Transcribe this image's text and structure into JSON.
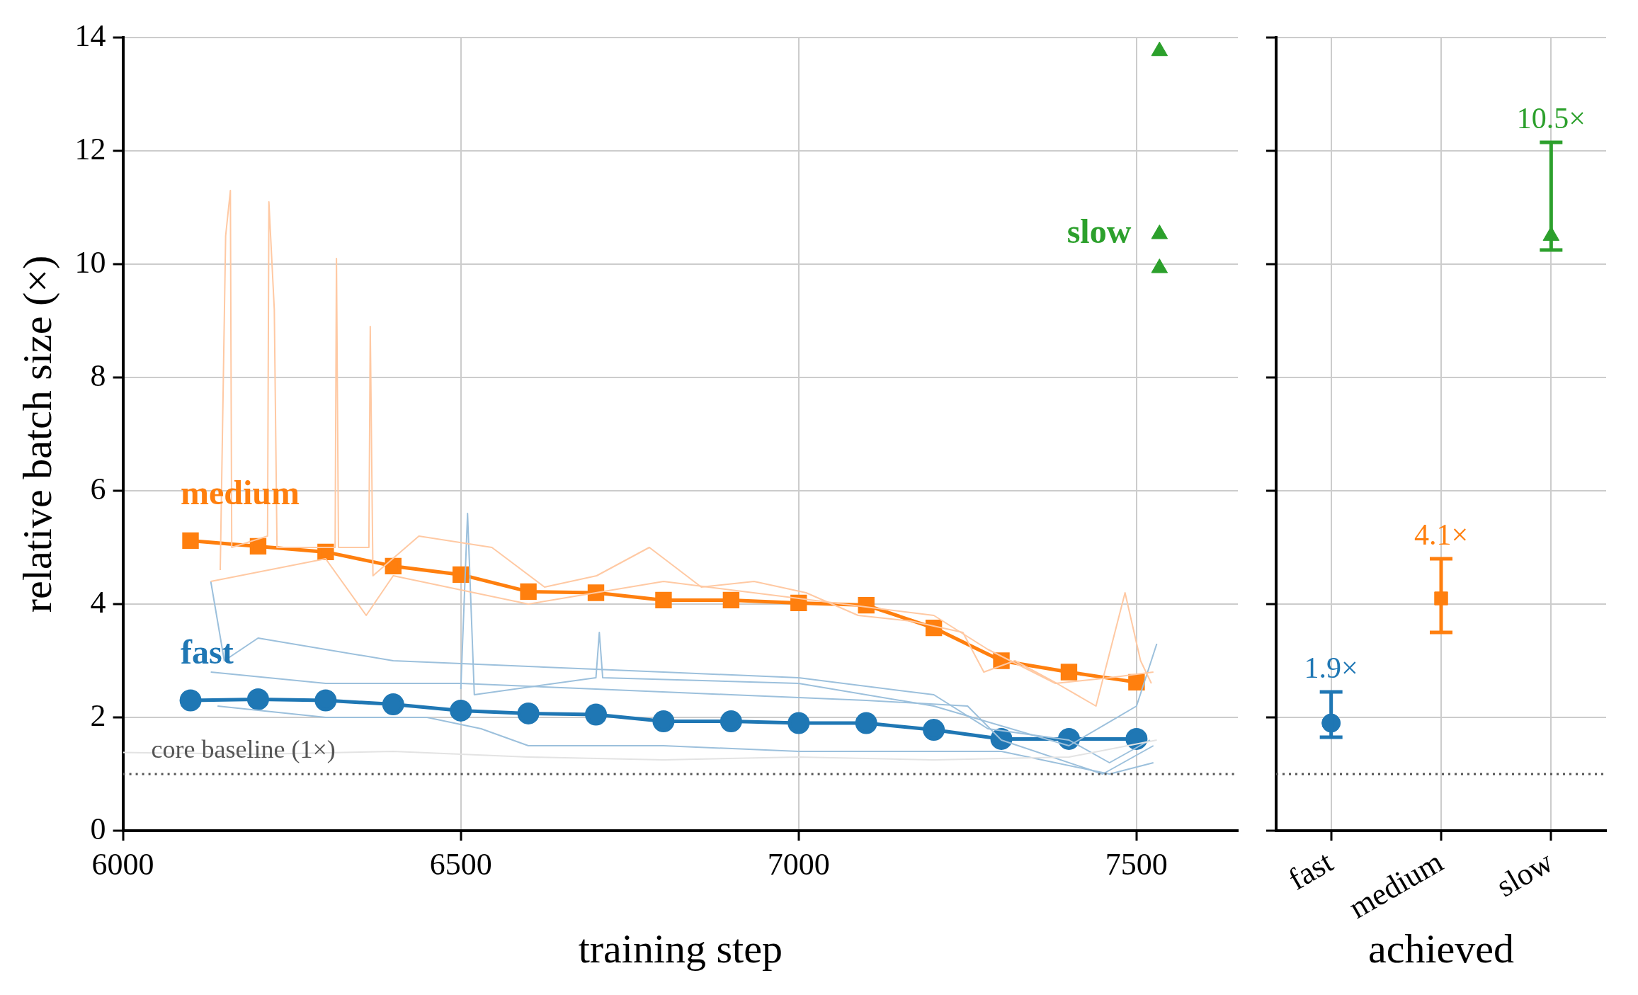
{
  "chart_data": [
    {
      "type": "line",
      "xlabel": "training step",
      "ylabel": "relative batch size (×)",
      "xlim": [
        6000,
        7650
      ],
      "xticks": [
        6000,
        6500,
        7000,
        7500
      ],
      "ylim": [
        0,
        14
      ],
      "yticks": [
        0,
        2,
        4,
        6,
        8,
        10,
        12,
        14
      ],
      "grid": true,
      "legend": false,
      "ref_lines": [
        {
          "axis": "y",
          "value": 1,
          "label": "core baseline (1×)",
          "color": "#555555",
          "line_style": "dotted"
        }
      ],
      "series": [
        {
          "color": "#e3e3e3",
          "marker": "none",
          "x": [
            6000,
            6200,
            6400,
            6600,
            6800,
            7000,
            7200,
            7400,
            7530
          ],
          "values": [
            1.38,
            1.35,
            1.4,
            1.3,
            1.25,
            1.3,
            1.25,
            1.3,
            1.6
          ]
        },
        {
          "color": "#ffc9a3",
          "marker": "none",
          "x": [
            6144,
            6152,
            6159,
            6161,
            6214,
            6216,
            6224,
            6228,
            6314,
            6316,
            6319,
            6364,
            6366,
            6370,
            6438,
            6546,
            6624,
            6701,
            6779,
            6856,
            6934,
            7011,
            7088,
            7166,
            7243,
            7274,
            7320,
            7382,
            7440,
            7483,
            7506,
            7522
          ],
          "values": [
            4.6,
            10.5,
            11.3,
            5,
            5.2,
            11.1,
            9.2,
            5,
            5,
            10.1,
            5,
            5,
            8.9,
            4.5,
            5.2,
            5,
            4.3,
            4.5,
            5,
            4.3,
            4.4,
            4.2,
            3.8,
            3.7,
            3.5,
            2.8,
            3,
            2.6,
            2.2,
            4.2,
            3,
            2.6
          ]
        },
        {
          "color": "#ffc9a3",
          "marker": "none",
          "x": [
            6130,
            6300,
            6360,
            6400,
            6600,
            6800,
            7000,
            7200,
            7280,
            7380,
            7460,
            7525
          ],
          "values": [
            4.4,
            4.8,
            3.8,
            4.5,
            4,
            4.4,
            4.1,
            3.8,
            3.2,
            2.6,
            2.7,
            2.8
          ]
        },
        {
          "color": "#9cc0dc",
          "marker": "none",
          "x": [
            6130,
            6150,
            6200,
            6400,
            6600,
            6800,
            7000,
            7200,
            7280,
            7400,
            7460,
            7520
          ],
          "values": [
            4.4,
            3,
            3.4,
            3,
            2.9,
            2.8,
            2.7,
            2.4,
            1.8,
            1.6,
            1.2,
            1.6
          ]
        },
        {
          "color": "#9cc0dc",
          "marker": "none",
          "x": [
            6130,
            6300,
            6500,
            6700,
            6900,
            7100,
            7250,
            7300,
            7450,
            7525
          ],
          "values": [
            2.8,
            2.6,
            2.6,
            2.5,
            2.4,
            2.3,
            2.2,
            1.6,
            1,
            1.5
          ]
        },
        {
          "color": "#9cc0dc",
          "marker": "none",
          "x": [
            6140,
            6300,
            6450,
            6530,
            6600,
            6800,
            7000,
            7200,
            7300,
            7460,
            7525
          ],
          "values": [
            2.2,
            2,
            2,
            1.8,
            1.5,
            1.5,
            1.4,
            1.4,
            1.4,
            1,
            1.2
          ]
        },
        {
          "color": "#9cc0dc",
          "marker": "none",
          "x": [
            6500,
            6510,
            6520,
            6700,
            6705,
            6710,
            7000,
            7200,
            7400,
            7500,
            7530
          ],
          "values": [
            2.5,
            5.6,
            2.4,
            2.7,
            3.5,
            2.7,
            2.6,
            2.2,
            1.5,
            2.2,
            3.3
          ]
        },
        {
          "name": "medium",
          "color": "#ff7f0e",
          "marker": "square",
          "x": [
            6100,
            6200,
            6300,
            6400,
            6500,
            6600,
            6700,
            6800,
            6900,
            7000,
            7100,
            7200,
            7300,
            7400,
            7500
          ],
          "values": [
            5.12,
            5.02,
            4.92,
            4.67,
            4.52,
            4.22,
            4.2,
            4.07,
            4.07,
            4.02,
            3.98,
            3.58,
            3.0,
            2.8,
            2.62
          ]
        },
        {
          "name": "fast",
          "color": "#1f77b4",
          "marker": "circle",
          "x": [
            6100,
            6200,
            6300,
            6400,
            6500,
            6600,
            6700,
            6800,
            6900,
            7000,
            7100,
            7200,
            7300,
            7400,
            7500
          ],
          "values": [
            2.3,
            2.32,
            2.3,
            2.23,
            2.12,
            2.07,
            2.05,
            1.93,
            1.93,
            1.9,
            1.9,
            1.78,
            1.62,
            1.62,
            1.62
          ]
        },
        {
          "type": "scatter",
          "name": "slow",
          "color": "#2ca02c",
          "marker": "triangle",
          "x": [
            7534,
            7534,
            7534
          ],
          "values": [
            13.76,
            10.53,
            9.93
          ]
        }
      ]
    },
    {
      "type": "scatter",
      "xlabel": "achieved",
      "categories": [
        "fast",
        "medium",
        "slow"
      ],
      "ylim": [
        0,
        14
      ],
      "yticks": [
        0,
        2,
        4,
        6,
        8,
        10,
        12,
        14
      ],
      "tick_labels": "x",
      "grid": true,
      "legend": false,
      "ref_lines": [
        {
          "axis": "y",
          "value": 1,
          "color": "#555555",
          "line_style": "dotted"
        }
      ],
      "series": [
        {
          "color": "#1f77b4",
          "marker": "circle",
          "values": [
            1.9,
            null,
            null
          ],
          "errors": [
            [
              1.65,
              2.45
            ],
            null,
            null
          ],
          "value_labels": [
            "1.9×",
            null,
            null
          ]
        },
        {
          "color": "#ff7f0e",
          "marker": "square",
          "values": [
            null,
            4.1,
            null
          ],
          "errors": [
            null,
            [
              3.5,
              4.8
            ],
            null
          ],
          "value_labels": [
            null,
            "4.1×",
            null
          ]
        },
        {
          "color": "#2ca02c",
          "marker": "triangle",
          "values": [
            null,
            null,
            10.5
          ],
          "errors": [
            null,
            null,
            [
              10.25,
              12.15
            ]
          ],
          "value_labels": [
            null,
            null,
            "10.5×"
          ]
        }
      ]
    }
  ]
}
